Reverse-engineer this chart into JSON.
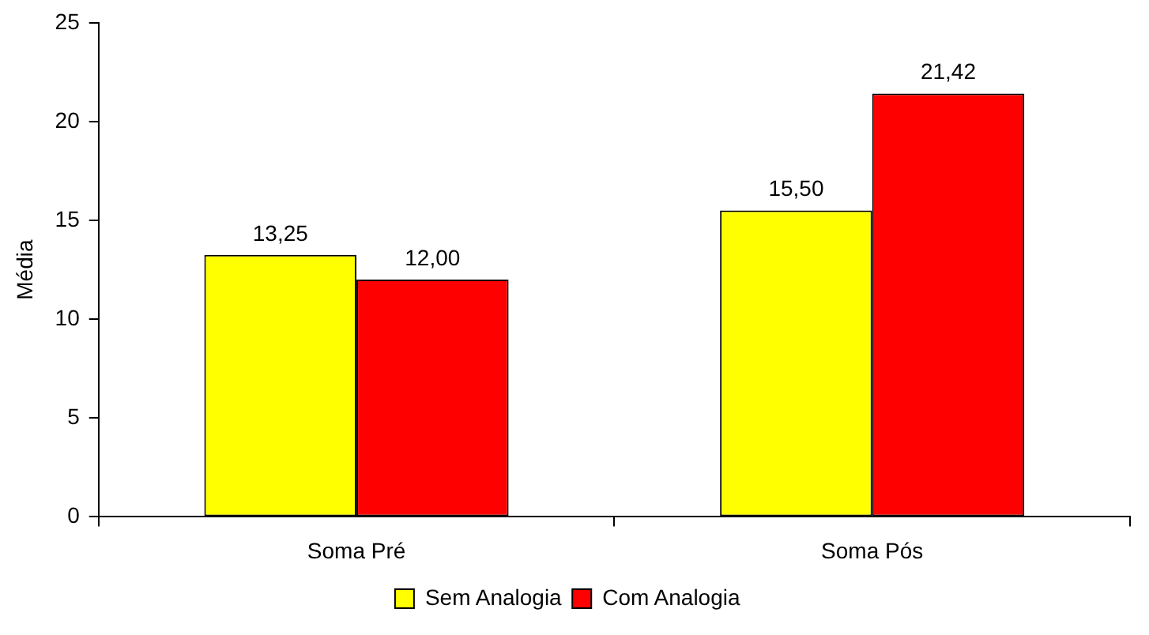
{
  "chart_data": {
    "type": "bar",
    "ylabel": "Média",
    "categories": [
      "Soma Pré",
      "Soma Pós"
    ],
    "series": [
      {
        "name": "Sem Analogia",
        "color": "#ffff00",
        "values": [
          13.25,
          15.5
        ],
        "value_labels": [
          "13,25",
          "15,50"
        ]
      },
      {
        "name": "Com Analogia",
        "color": "#ff0000",
        "values": [
          12.0,
          21.42
        ],
        "value_labels": [
          "12,00",
          "21,42"
        ]
      }
    ],
    "ylim": [
      0,
      25
    ],
    "yticks": [
      0,
      5,
      10,
      15,
      20,
      25
    ],
    "grid": false,
    "legend": "bottom"
  }
}
